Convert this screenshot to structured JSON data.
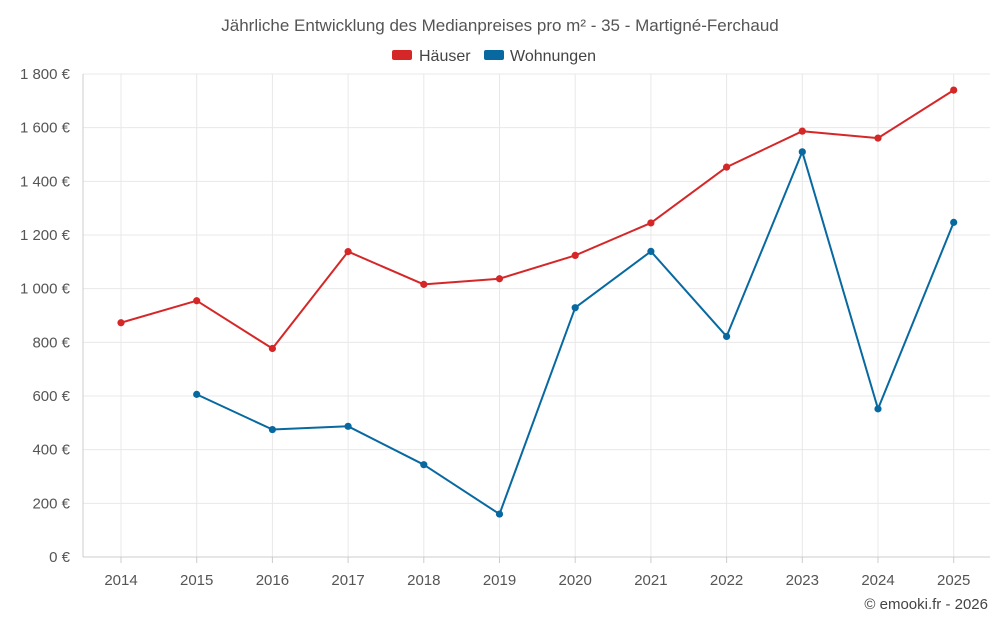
{
  "chart_data": {
    "type": "line",
    "title": "Jährliche Entwicklung des Medianpreises pro m² - 35 - Martigné-Ferchaud",
    "categories": [
      "2014",
      "2015",
      "2016",
      "2017",
      "2018",
      "2019",
      "2020",
      "2021",
      "2022",
      "2023",
      "2024",
      "2025"
    ],
    "ylim": [
      0,
      1800
    ],
    "y_ticks": [
      0,
      200,
      400,
      600,
      800,
      1000,
      1200,
      1400,
      1600,
      1800
    ],
    "y_tick_labels": [
      "0 €",
      "200 €",
      "400 €",
      "600 €",
      "800 €",
      "1 000 €",
      "1 200 €",
      "1 400 €",
      "1 600 €",
      "1 800 €"
    ],
    "grid": true,
    "legend_position": "top-center",
    "series": [
      {
        "name": "Häuser",
        "color": "#d62728",
        "values": [
          873,
          955,
          777,
          1138,
          1016,
          1037,
          1124,
          1245,
          1453,
          1587,
          1561,
          1740
        ]
      },
      {
        "name": "Wohnungen",
        "color": "#0869a1",
        "values": [
          null,
          606,
          475,
          487,
          344,
          160,
          929,
          1139,
          822,
          1510,
          552,
          1247
        ]
      }
    ]
  },
  "credit": "© emooki.fr - 2026"
}
